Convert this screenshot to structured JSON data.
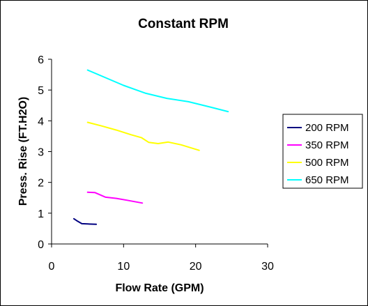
{
  "chart_data": {
    "type": "line",
    "title": "Constant RPM",
    "xlabel": "Flow Rate (GPM)",
    "ylabel": "Press. Rise (FT.H2O)",
    "xlim": [
      0,
      30
    ],
    "ylim": [
      0,
      6
    ],
    "x_ticks": [
      "0",
      "10",
      "20",
      "30"
    ],
    "y_ticks": [
      "0",
      "1",
      "2",
      "3",
      "4",
      "5",
      "6"
    ],
    "grid": false,
    "legend_position": "right",
    "series": [
      {
        "name": "200 RPM",
        "color": "#000080",
        "x": [
          3.1,
          3.6,
          4.2,
          5.0,
          6.2
        ],
        "y": [
          0.82,
          0.74,
          0.66,
          0.65,
          0.64
        ]
      },
      {
        "name": "350 RPM",
        "color": "#FF00FF",
        "x": [
          5.0,
          6.0,
          7.5,
          9.0,
          10.5,
          12.6
        ],
        "y": [
          1.68,
          1.67,
          1.52,
          1.48,
          1.42,
          1.33
        ]
      },
      {
        "name": "500 RPM",
        "color": "#FFFF00",
        "x": [
          5.0,
          7.0,
          9.0,
          11.0,
          12.5,
          13.5,
          14.8,
          16.2,
          18.0,
          20.5
        ],
        "y": [
          3.95,
          3.83,
          3.7,
          3.55,
          3.45,
          3.3,
          3.26,
          3.31,
          3.22,
          3.04
        ]
      },
      {
        "name": "650 RPM",
        "color": "#00FFFF",
        "x": [
          5.0,
          7.5,
          10.0,
          13.0,
          16.0,
          19.0,
          22.0,
          24.5
        ],
        "y": [
          5.65,
          5.4,
          5.15,
          4.9,
          4.73,
          4.62,
          4.45,
          4.3
        ]
      }
    ]
  }
}
